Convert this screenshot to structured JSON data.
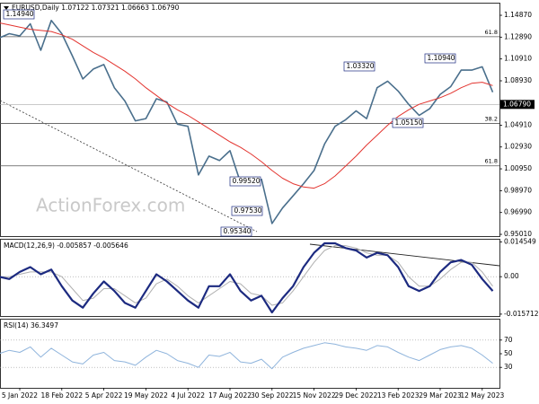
{
  "chart_data": [
    {
      "type": "line",
      "title": "EURUSD,Daily 1.07122 1.07321 1.06663 1.06790",
      "watermark": "ActionForex.com",
      "ylim": [
        0.9485,
        1.1593
      ],
      "yticks": [
        {
          "value": 1.1487,
          "label": "1.14870"
        },
        {
          "value": 1.1289,
          "label": "1.12890"
        },
        {
          "value": 1.1091,
          "label": "1.10910"
        },
        {
          "value": 1.0893,
          "label": "1.08930"
        },
        {
          "value": 1.0491,
          "label": "1.04910"
        },
        {
          "value": 1.0293,
          "label": "1.02930"
        },
        {
          "value": 1.0095,
          "label": "1.00950"
        },
        {
          "value": 0.9897,
          "label": "0.98970"
        },
        {
          "value": 0.9699,
          "label": "0.96990"
        },
        {
          "value": 0.9501,
          "label": "0.95010"
        }
      ],
      "last_price": {
        "value": 1.0679,
        "label": "1.06790"
      },
      "levels": [
        {
          "value": 1.1293,
          "label": "61.8"
        },
        {
          "value": 1.0506,
          "label": "38.2"
        },
        {
          "value": 1.0122,
          "label": "61.8"
        }
      ],
      "annotations": [
        "1.14940",
        "0.99520",
        "0.97530",
        "0.95340",
        "1.03320",
        "1.05150",
        "1.10940"
      ],
      "series": [
        {
          "color": "#4a6f8c",
          "values": [
            1.128,
            1.132,
            1.13,
            1.141,
            1.117,
            1.144,
            1.132,
            1.112,
            1.091,
            1.1,
            1.104,
            1.083,
            1.071,
            1.053,
            1.055,
            1.073,
            1.07,
            1.05,
            1.048,
            1.004,
            1.021,
            1.017,
            1.026,
            0.997,
            0.995,
            1.0,
            0.96,
            0.974,
            0.985,
            0.996,
            1.008,
            1.032,
            1.048,
            1.054,
            1.062,
            1.055,
            1.083,
            1.089,
            1.08,
            1.068,
            1.058,
            1.064,
            1.077,
            1.084,
            1.099,
            1.099,
            1.102,
            1.079
          ]
        },
        {
          "color": "#e3342f",
          "values": [
            1.142,
            1.14,
            1.138,
            1.136,
            1.135,
            1.134,
            1.131,
            1.127,
            1.121,
            1.115,
            1.11,
            1.104,
            1.098,
            1.091,
            1.083,
            1.076,
            1.069,
            1.063,
            1.058,
            1.052,
            1.046,
            1.04,
            1.034,
            1.029,
            1.023,
            1.016,
            1.008,
            1.001,
            0.996,
            0.993,
            0.992,
            0.996,
            1.003,
            1.012,
            1.021,
            1.031,
            1.04,
            1.049,
            1.057,
            1.063,
            1.068,
            1.071,
            1.074,
            1.078,
            1.083,
            1.087,
            1.088,
            1.085
          ]
        }
      ]
    },
    {
      "type": "line",
      "title": "MACD(12,26,9) -0.005857 -0.005646",
      "ylim": [
        -0.0165,
        0.0155
      ],
      "yticks": [
        0.014549,
        {
          "value": 0,
          "label": "0.00"
        },
        -0.015712
      ],
      "series": [
        {
          "color": "#b0b0b0",
          "values": [
            0,
            0,
            0.001,
            0.002,
            0.002,
            0.002,
            0,
            -0.005,
            -0.01,
            -0.009,
            -0.005,
            -0.005,
            -0.008,
            -0.011,
            -0.009,
            -0.003,
            -0.001,
            -0.004,
            -0.008,
            -0.011,
            -0.008,
            -0.005,
            -0.002,
            -0.003,
            -0.007,
            -0.008,
            -0.012,
            -0.011,
            -0.006,
            0,
            0.006,
            0.011,
            0.013,
            0.013,
            0.012,
            0.01,
            0.009,
            0.009,
            0.006,
            0,
            -0.004,
            -0.004,
            -0.001,
            0.003,
            0.006,
            0.006,
            0.002,
            -0.004
          ]
        },
        {
          "color": "#1c2a80",
          "values": [
            0,
            -0.001,
            0.002,
            0.004,
            0.001,
            0.003,
            -0.004,
            -0.01,
            -0.013,
            -0.007,
            -0.002,
            -0.006,
            -0.011,
            -0.013,
            -0.006,
            0.001,
            -0.002,
            -0.006,
            -0.01,
            -0.013,
            -0.004,
            -0.004,
            0.001,
            -0.006,
            -0.01,
            -0.008,
            -0.015,
            -0.009,
            -0.004,
            0.004,
            0.01,
            0.014,
            0.014,
            0.012,
            0.011,
            0.008,
            0.01,
            0.009,
            0.004,
            -0.004,
            -0.006,
            -0.004,
            0.002,
            0.006,
            0.007,
            0.005,
            -0.001,
            -0.006
          ]
        }
      ]
    },
    {
      "type": "line",
      "title": "RSI(14) 36.3497",
      "ylim": [
        0,
        100
      ],
      "yticks": [
        70,
        50,
        30
      ],
      "categories": [
        null,
        null,
        "5 Jan 2022",
        null,
        null,
        null,
        "18 Feb 2022",
        null,
        null,
        null,
        "5 Apr 2022",
        null,
        null,
        null,
        "19 May 2022",
        null,
        null,
        null,
        "4 Jul 2022",
        null,
        null,
        null,
        "17 Aug 2022",
        null,
        null,
        null,
        "30 Sep 2022",
        null,
        null,
        null,
        "15 Nov 2022",
        null,
        null,
        null,
        "29 Dec 2022",
        null,
        null,
        null,
        "13 Feb 2023",
        null,
        null,
        null,
        "29 Mar 2023",
        null,
        null,
        null,
        "12 May 2023",
        null
      ],
      "series": [
        {
          "color": "#8fb4dc",
          "values": [
            50,
            55,
            52,
            60,
            45,
            58,
            48,
            38,
            35,
            48,
            52,
            40,
            38,
            33,
            45,
            55,
            50,
            40,
            36,
            30,
            48,
            46,
            52,
            38,
            36,
            42,
            28,
            45,
            52,
            58,
            62,
            66,
            64,
            60,
            58,
            55,
            62,
            60,
            52,
            45,
            40,
            48,
            56,
            60,
            62,
            58,
            48,
            36
          ]
        }
      ]
    }
  ]
}
